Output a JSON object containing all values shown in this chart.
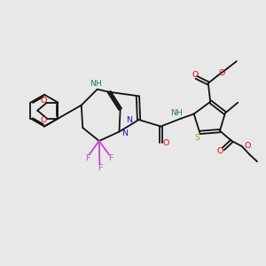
{
  "bg": "#e8e8e8",
  "bond_color": "#111111",
  "N_color": "#1111cc",
  "O_color": "#cc1111",
  "S_color": "#aaaa00",
  "F_color": "#cc44cc",
  "NH_color": "#227777",
  "lw": 1.3,
  "fs": 6.5,
  "xlim": [
    0,
    10
  ],
  "ylim": [
    0,
    10
  ]
}
